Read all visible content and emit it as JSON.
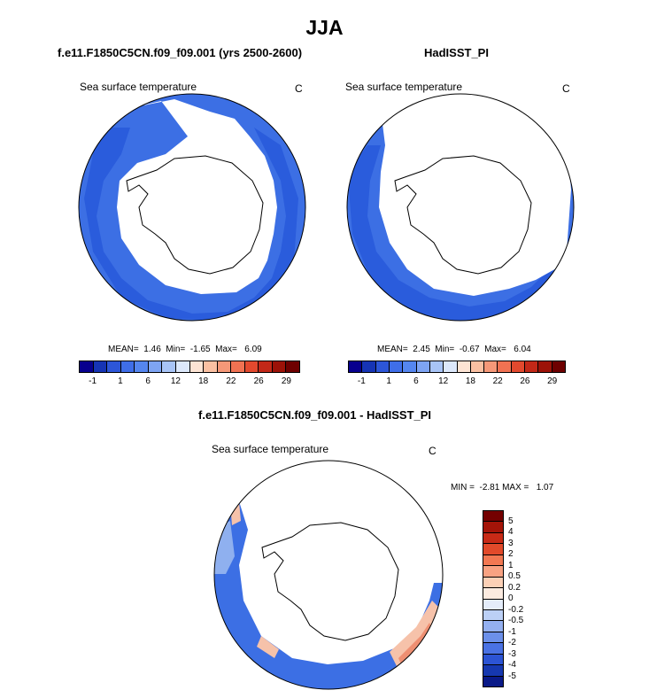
{
  "figure_title": "JJA",
  "colors": {
    "land": "#ffffff",
    "ocean_dark": "#2a5cdc",
    "ocean_mid": "#3c6fe4",
    "ocean_light": "#5a87e8",
    "ocean_pale": "#8fb0ef",
    "warm_pale": "#f6c2aa",
    "warm_mid": "#ee8f72",
    "outline": "#000000"
  },
  "abs_colorbar_colors": [
    "#08008e",
    "#1634b4",
    "#2d56d8",
    "#3f6ee8",
    "#5586ef",
    "#7ea4f3",
    "#a8c4f6",
    "#dce8fb",
    "#fde4d4",
    "#fac0a2",
    "#f59878",
    "#f07252",
    "#e2492e",
    "#c22818",
    "#9c1208",
    "#6e0000"
  ],
  "diff_colorbar_colors": [
    "#740000",
    "#a41408",
    "#c82a16",
    "#e24a2a",
    "#f27852",
    "#f8a282",
    "#fcd0b6",
    "#fcebe0",
    "#e4ecfa",
    "#bcd0f6",
    "#94b0f0",
    "#6c90ea",
    "#4a72e4",
    "#2c54d4",
    "#1638b0",
    "#0a1a88"
  ],
  "chart_data": [
    {
      "type": "heatmap",
      "projection": "south-polar-stereographic",
      "title": "f.e11.F1850C5CN.f09_f09.001 (yrs 2500-2600)",
      "variable": "Sea surface temperature",
      "units": "C",
      "stats": {
        "mean": "1.46",
        "min": "-1.65",
        "max": "6.09"
      },
      "stats_text": "MEAN=  1.46  Min=  -1.65  Max=   6.09",
      "colorbar_levels": [
        "-1",
        "1",
        "6",
        "12",
        "18",
        "22",
        "26",
        "29"
      ]
    },
    {
      "type": "heatmap",
      "projection": "south-polar-stereographic",
      "title": "HadISST_PI",
      "variable": "Sea surface temperature",
      "units": "C",
      "stats": {
        "mean": "2.45",
        "min": "-0.67",
        "max": "6.04"
      },
      "stats_text": "MEAN=  2.45  Min=  -0.67  Max=   6.04",
      "colorbar_levels": [
        "-1",
        "1",
        "6",
        "12",
        "18",
        "22",
        "26",
        "29"
      ]
    },
    {
      "type": "heatmap",
      "projection": "south-polar-stereographic",
      "title": "f.e11.F1850C5CN.f09_f09.001 - HadISST_PI",
      "variable": "Sea surface temperature",
      "units": "C",
      "stats": {
        "min": "-2.81",
        "max": "1.07"
      },
      "stats_text": "MIN =  -2.81 MAX =   1.07",
      "colorbar_levels": [
        "5",
        "4",
        "3",
        "2",
        "1",
        "0.5",
        "0.2",
        "0",
        "-0.2",
        "-0.5",
        "-1",
        "-2",
        "-3",
        "-4",
        "-5"
      ]
    }
  ]
}
